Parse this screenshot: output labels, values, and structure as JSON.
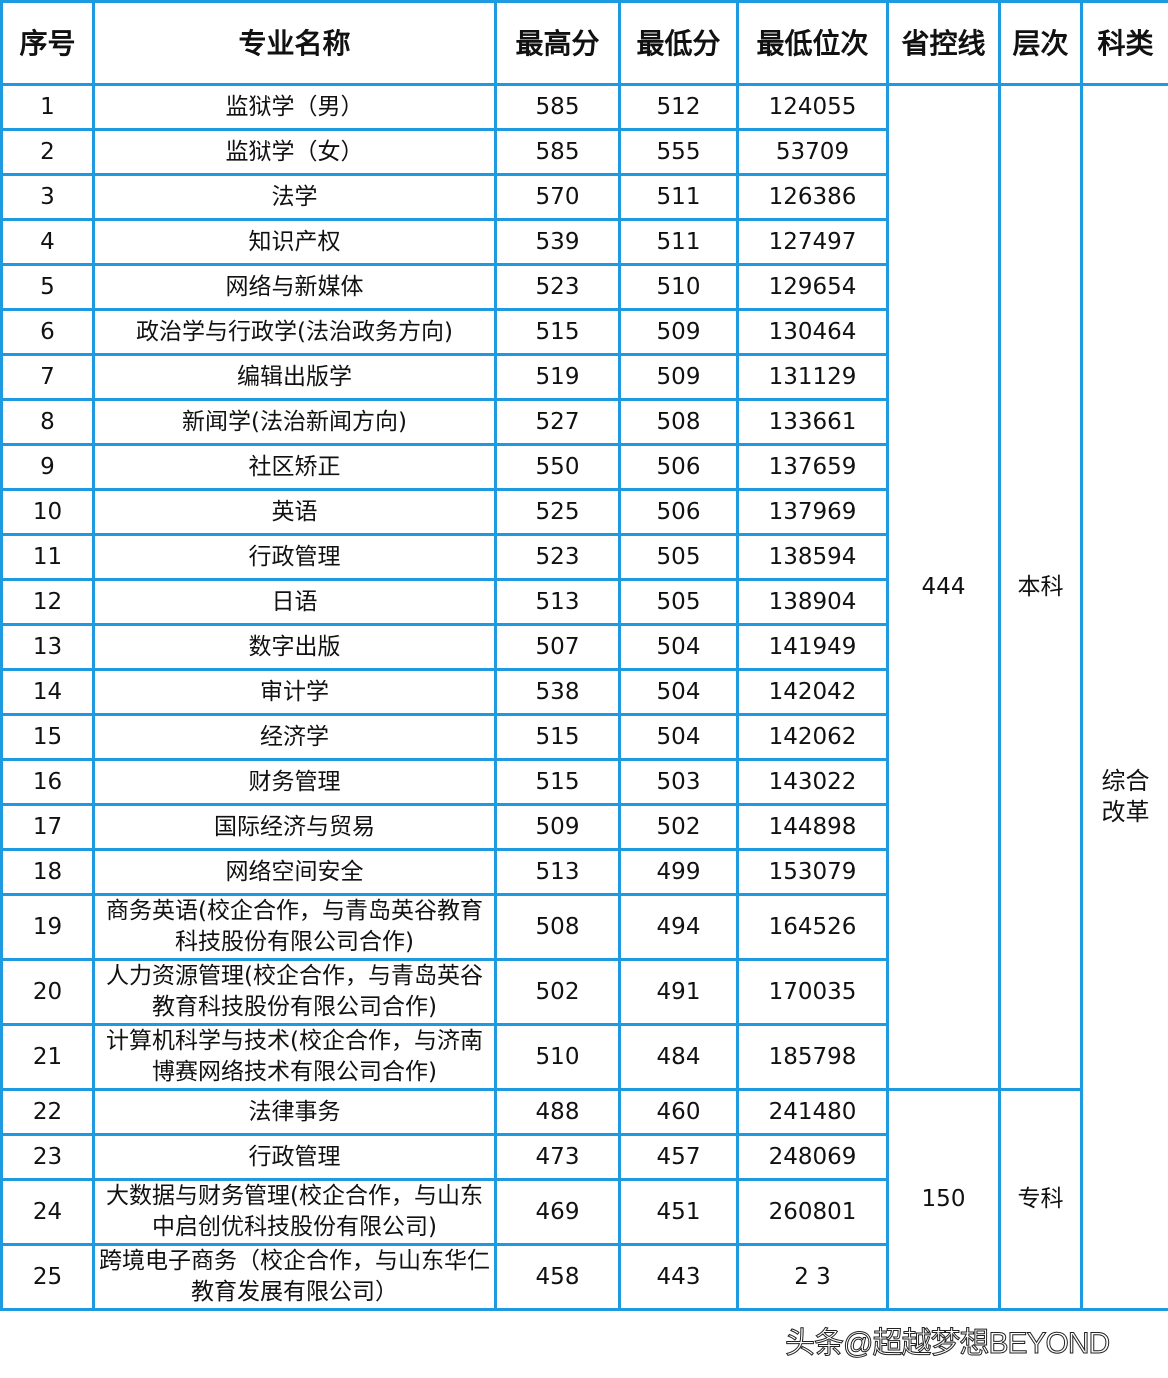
{
  "headers": [
    "序号",
    "专业名称",
    "最高分",
    "最低分",
    "最低位次",
    "省控线",
    "层次",
    "科类"
  ],
  "rows": [
    {
      "no": "1",
      "name": "监狱学（男）",
      "max": "585",
      "min": "512",
      "rank": "124055"
    },
    {
      "no": "2",
      "name": "监狱学（女）",
      "max": "585",
      "min": "555",
      "rank": "53709"
    },
    {
      "no": "3",
      "name": "法学",
      "max": "570",
      "min": "511",
      "rank": "126386"
    },
    {
      "no": "4",
      "name": "知识产权",
      "max": "539",
      "min": "511",
      "rank": "127497"
    },
    {
      "no": "5",
      "name": "网络与新媒体",
      "max": "523",
      "min": "510",
      "rank": "129654"
    },
    {
      "no": "6",
      "name": "政治学与行政学(法治政务方向)",
      "max": "515",
      "min": "509",
      "rank": "130464"
    },
    {
      "no": "7",
      "name": "编辑出版学",
      "max": "519",
      "min": "509",
      "rank": "131129"
    },
    {
      "no": "8",
      "name": "新闻学(法治新闻方向)",
      "max": "527",
      "min": "508",
      "rank": "133661"
    },
    {
      "no": "9",
      "name": "社区矫正",
      "max": "550",
      "min": "506",
      "rank": "137659"
    },
    {
      "no": "10",
      "name": "英语",
      "max": "525",
      "min": "506",
      "rank": "137969"
    },
    {
      "no": "11",
      "name": "行政管理",
      "max": "523",
      "min": "505",
      "rank": "138594"
    },
    {
      "no": "12",
      "name": "日语",
      "max": "513",
      "min": "505",
      "rank": "138904"
    },
    {
      "no": "13",
      "name": "数字出版",
      "max": "507",
      "min": "504",
      "rank": "141949"
    },
    {
      "no": "14",
      "name": "审计学",
      "max": "538",
      "min": "504",
      "rank": "142042"
    },
    {
      "no": "15",
      "name": "经济学",
      "max": "515",
      "min": "504",
      "rank": "142062"
    },
    {
      "no": "16",
      "name": "财务管理",
      "max": "515",
      "min": "503",
      "rank": "143022"
    },
    {
      "no": "17",
      "name": "国际经济与贸易",
      "max": "509",
      "min": "502",
      "rank": "144898"
    },
    {
      "no": "18",
      "name": "网络空间安全",
      "max": "513",
      "min": "499",
      "rank": "153079"
    },
    {
      "no": "19",
      "name": "商务英语(校企合作，与青岛英谷教育科技股份有限公司合作)",
      "max": "508",
      "min": "494",
      "rank": "164526",
      "tall": true
    },
    {
      "no": "20",
      "name": "人力资源管理(校企合作，与青岛英谷教育科技股份有限公司合作)",
      "max": "502",
      "min": "491",
      "rank": "170035",
      "tall": true
    },
    {
      "no": "21",
      "name": "计算机科学与技术(校企合作，与济南博赛网络技术有限公司合作)",
      "max": "510",
      "min": "484",
      "rank": "185798",
      "tall": true
    },
    {
      "no": "22",
      "name": "法律事务",
      "max": "488",
      "min": "460",
      "rank": "241480"
    },
    {
      "no": "23",
      "name": "行政管理",
      "max": "473",
      "min": "457",
      "rank": "248069"
    },
    {
      "no": "24",
      "name": "大数据与财务管理(校企合作，与山东中启创优科技股份有限公司)",
      "max": "469",
      "min": "451",
      "rank": "260801",
      "tall": true
    },
    {
      "no": "25",
      "name": "跨境电子商务（校企合作，与山东华仁教育发展有限公司）",
      "max": "458",
      "min": "443",
      "rank": "2    3",
      "tall": true
    }
  ],
  "groups": [
    {
      "control_line": "444",
      "level": "本科",
      "span": 21
    },
    {
      "control_line": "150",
      "level": "专科",
      "span": 4
    }
  ],
  "category": "综合改革",
  "watermark": "头条@超越梦想BEYOND",
  "colors": {
    "border": "#1e9be0"
  }
}
